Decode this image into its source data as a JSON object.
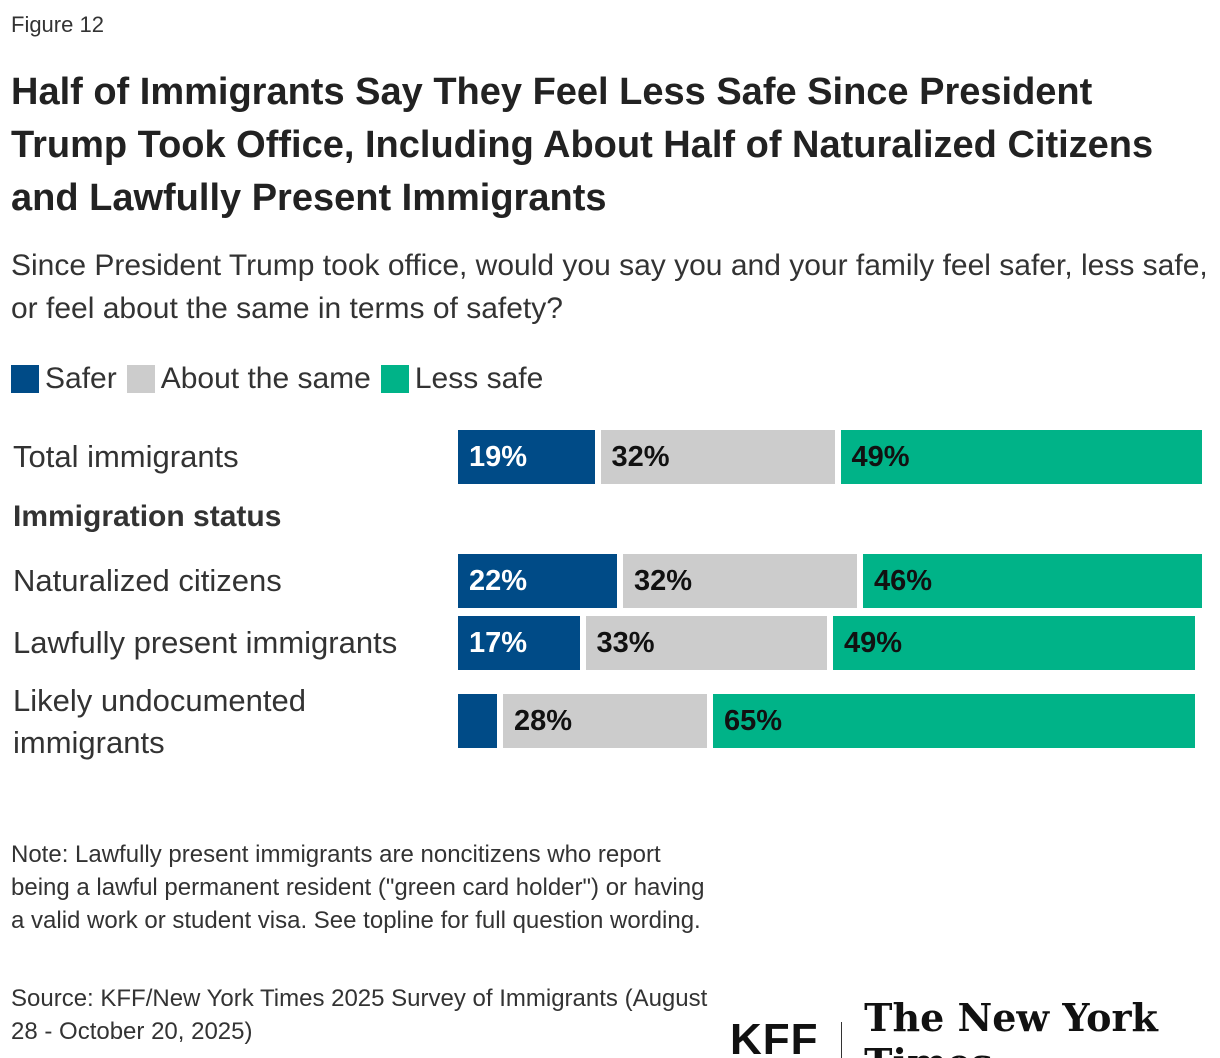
{
  "figure_label": "Figure 12",
  "logos": {
    "kff": "KFF",
    "nyt": "The New York Times"
  },
  "note": "Note: Lawfully present immigrants are noncitizens who report being a lawful permanent resident (\"green card holder\") or having a valid work or student visa. See topline for full question wording.",
  "source": "Source: KFF/New York Times 2025 Survey of Immigrants (August 28 - October 20, 2025)",
  "chart_data": {
    "type": "bar",
    "orientation": "horizontal",
    "stacked": true,
    "title": "Half of Immigrants Say They Feel Less Safe Since President Trump Took Office, Including About Half of Naturalized Citizens and Lawfully Present Immigrants",
    "subtitle": "Since President Trump took office, would you say you and your family feel safer, less safe, or feel about the same in terms of safety?",
    "legend_position": "top-left",
    "grid": false,
    "group_label": "Immigration status",
    "categories": [
      "Total immigrants",
      "Naturalized citizens",
      "Lawfully present immigrants",
      "Likely undocumented immigrants"
    ],
    "series": [
      {
        "name": "Safer",
        "color": "#004b87",
        "values": [
          19,
          22,
          17,
          6
        ],
        "labels": [
          "19%",
          "22%",
          "17%",
          ""
        ]
      },
      {
        "name": "About the same",
        "color": "#cccccc",
        "values": [
          32,
          32,
          33,
          28
        ],
        "labels": [
          "32%",
          "32%",
          "33%",
          "28%"
        ]
      },
      {
        "name": "Less safe",
        "color": "#00b388",
        "values": [
          49,
          46,
          49,
          65
        ],
        "labels": [
          "49%",
          "46%",
          "49%",
          "65%"
        ]
      }
    ],
    "xlim": [
      0,
      100
    ]
  }
}
